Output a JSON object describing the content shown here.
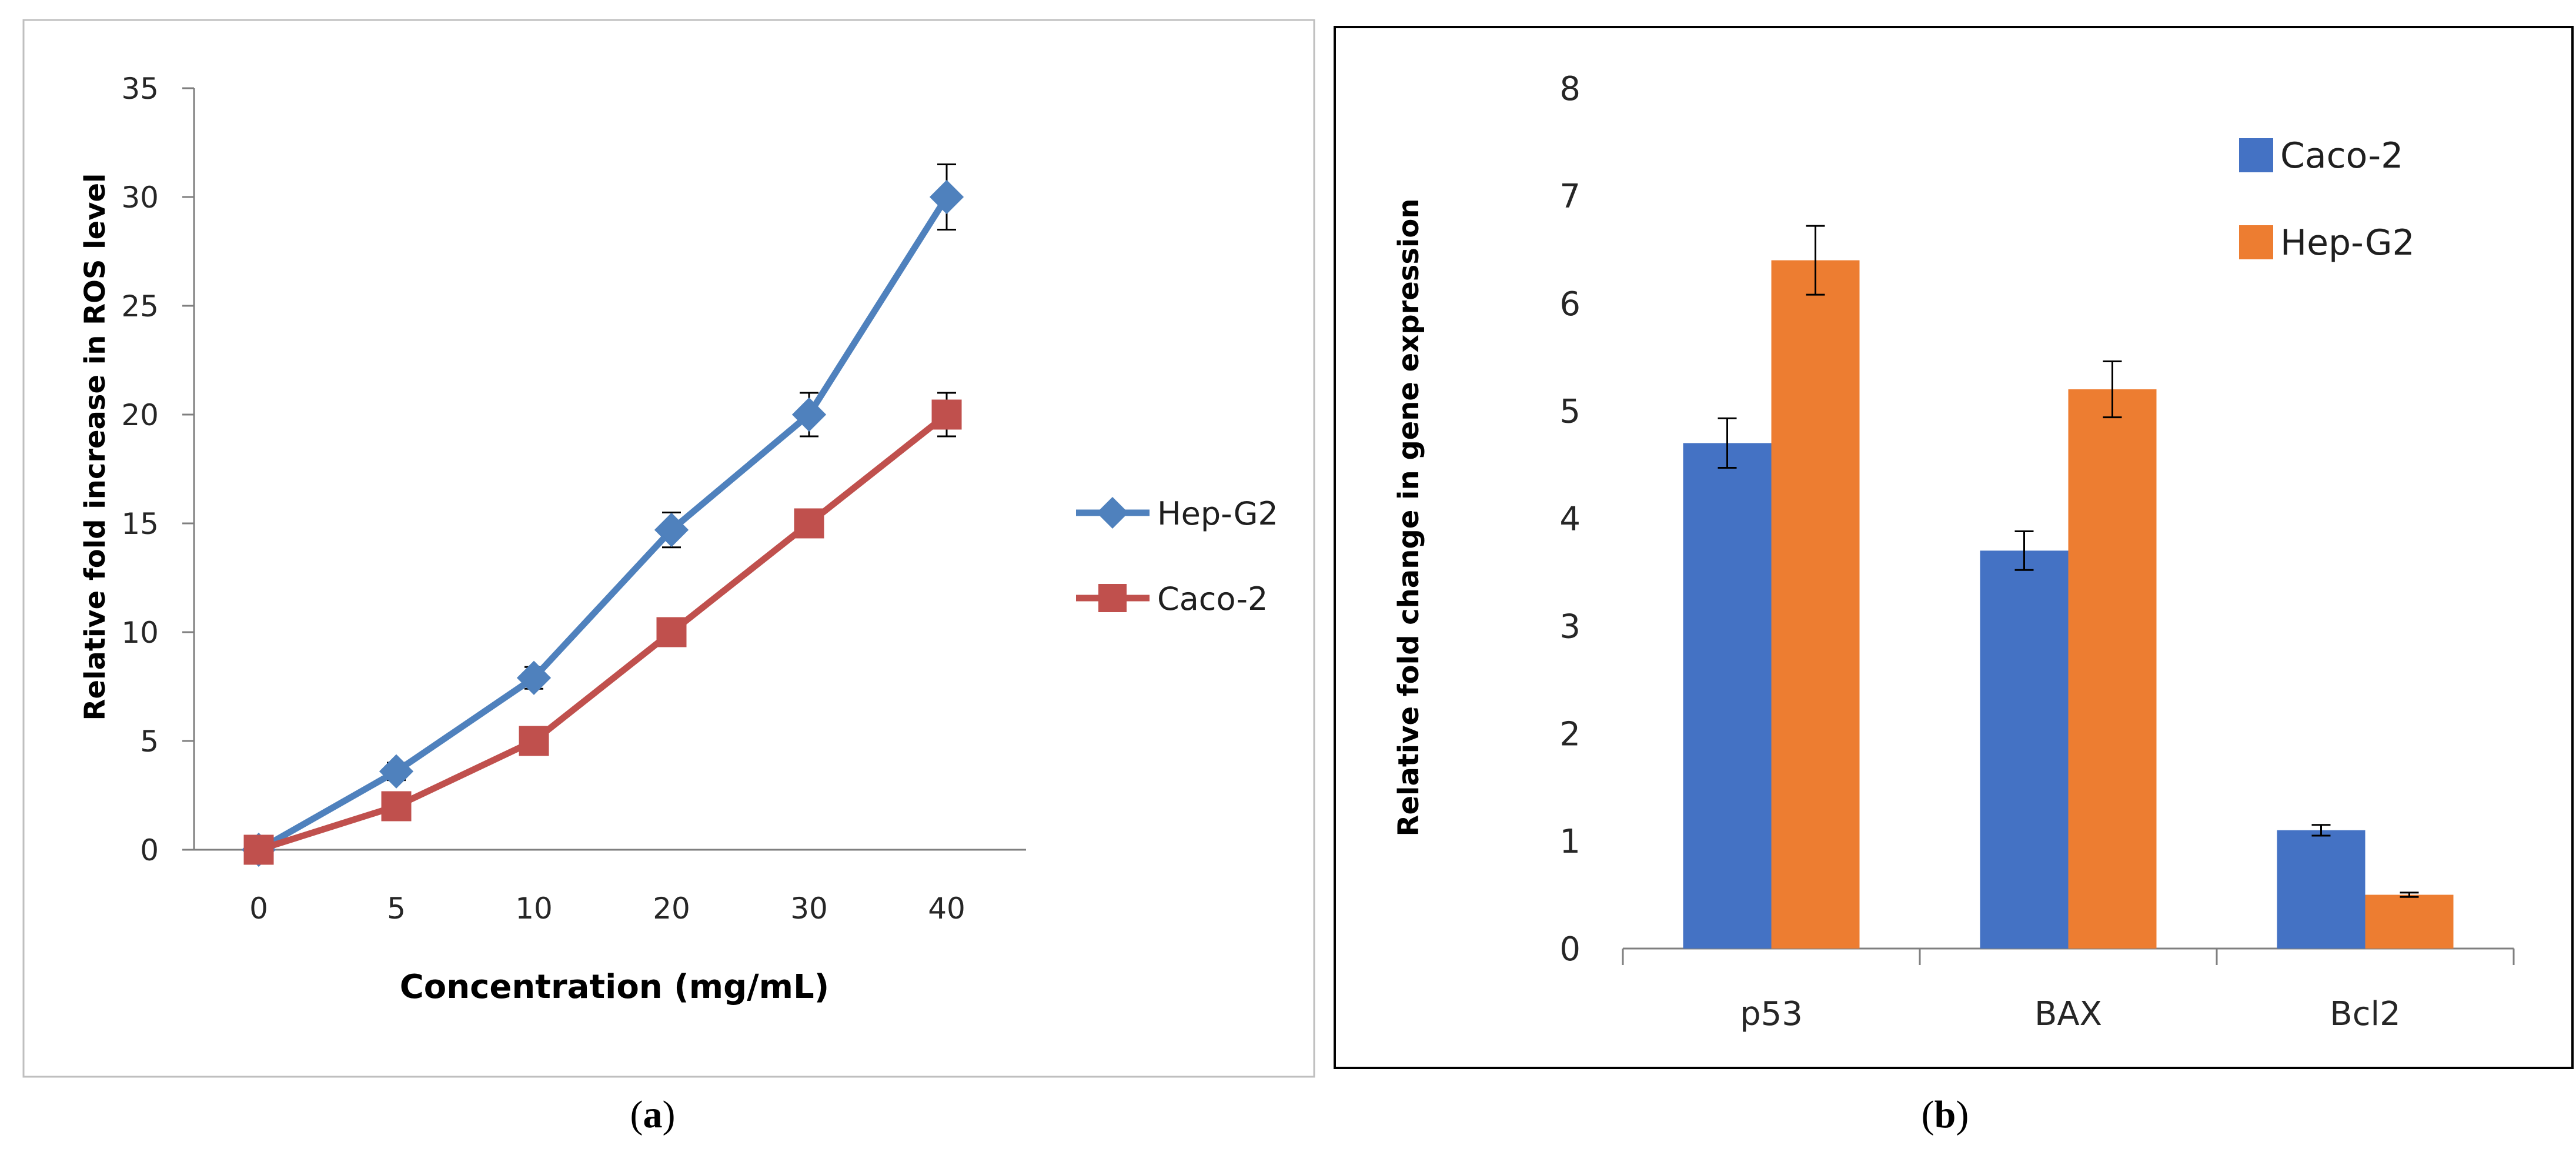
{
  "captions": {
    "a_open": "(",
    "a_letter": "a",
    "a_close": ")",
    "b_open": "(",
    "b_letter": "b",
    "b_close": ")"
  },
  "colors": {
    "hep_line": "#4f81bd",
    "caco_line": "#c0504d",
    "caco_bar": "#4472c4",
    "hep_bar": "#ed7d31",
    "axis": "#7f7f7f",
    "frame_a": "#bfbfbf",
    "frame_b": "#000000"
  },
  "chart_data": [
    {
      "type": "line",
      "panel": "a",
      "title": "",
      "xlabel": "Concentration (mg/mL)",
      "ylabel": "Relative fold increase in ROS level",
      "categories": [
        "0",
        "5",
        "10",
        "20",
        "30",
        "40"
      ],
      "ylim": [
        0,
        35
      ],
      "yticks": [
        0,
        5,
        10,
        15,
        20,
        25,
        30,
        35
      ],
      "grid": false,
      "legend_position": "right",
      "series": [
        {
          "name": "Hep-G2",
          "marker": "diamond",
          "values": [
            0,
            3.6,
            7.9,
            14.7,
            20.0,
            30.0
          ],
          "errors": [
            0.3,
            0.4,
            0.5,
            0.8,
            1.0,
            1.5
          ]
        },
        {
          "name": "Caco-2",
          "marker": "square",
          "values": [
            0,
            2.0,
            5.0,
            10.0,
            15.0,
            20.0
          ],
          "errors": [
            0,
            0,
            0,
            0,
            0,
            1.0
          ]
        }
      ]
    },
    {
      "type": "bar",
      "panel": "b",
      "title": "",
      "xlabel": "",
      "ylabel": "Relative fold change in gene expression",
      "categories": [
        "p53",
        "BAX",
        "Bcl2"
      ],
      "ylim": [
        0,
        8
      ],
      "yticks": [
        0,
        1,
        2,
        3,
        4,
        5,
        6,
        7,
        8
      ],
      "grid": false,
      "legend_position": "top-right",
      "series": [
        {
          "name": "Caco-2",
          "values": [
            4.7,
            3.7,
            1.1
          ],
          "errors": [
            0.23,
            0.18,
            0.05
          ]
        },
        {
          "name": "Hep-G2",
          "values": [
            6.4,
            5.2,
            0.5
          ],
          "errors": [
            0.32,
            0.26,
            0.02
          ]
        }
      ]
    }
  ]
}
